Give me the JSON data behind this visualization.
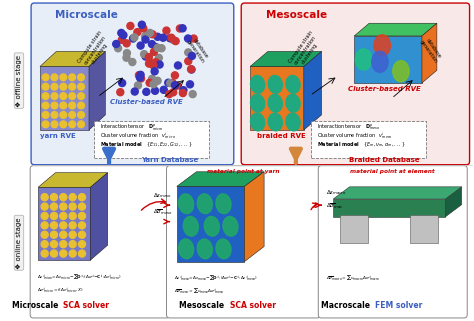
{
  "bg_color": "#ffffff",
  "offline_label": "❖ offline stage",
  "online_label": "❖ online stage",
  "microscale_title": "Microscale",
  "mesoscale_title": "Mesoscale",
  "microscale_color": "#3b5fc0",
  "mesoscale_color": "#cc0000",
  "micro_box_border": "#3b5fc0",
  "meso_box_border": "#cc0000",
  "yarn_label": "yarn RVE",
  "yarn_db_label": "Yarn Database",
  "braided_label": "braided RVE",
  "braided_db_label": "Braided Database",
  "cluster_micro": "Cluster-based RVE",
  "cluster_meso": "Cluster-based RVE",
  "sca_color": "#cc0000",
  "fem_color": "#3b5fc0",
  "mat_point_yarn": "material point at yarn",
  "mat_point_elem": "material point at element",
  "mat_point_color": "#cc0000",
  "arrow_down_blue": "#3b6fcc",
  "arrow_down_orange": "#d4863a"
}
